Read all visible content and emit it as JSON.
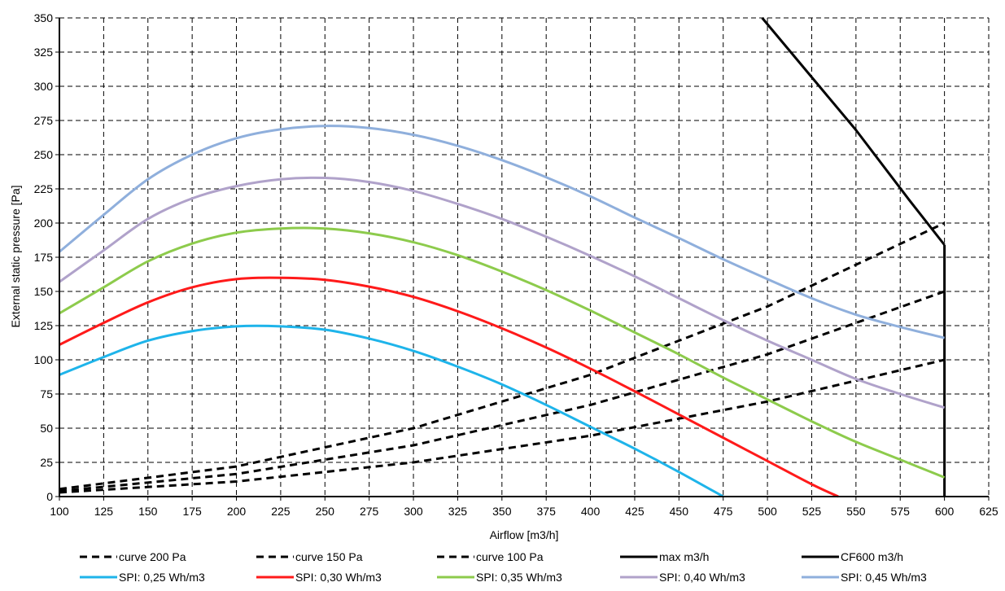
{
  "chart_data": {
    "type": "line",
    "title": "",
    "xlabel": "Airflow [m3/h]",
    "ylabel": "External static pressure [Pa]",
    "xlim": [
      100,
      625
    ],
    "ylim": [
      0,
      350
    ],
    "xticks": [
      100,
      125,
      150,
      175,
      200,
      225,
      250,
      275,
      300,
      325,
      350,
      375,
      400,
      425,
      450,
      475,
      500,
      525,
      550,
      575,
      600,
      625
    ],
    "yticks": [
      0,
      25,
      50,
      75,
      100,
      125,
      150,
      175,
      200,
      225,
      250,
      275,
      300,
      325,
      350
    ],
    "grid": "dashed",
    "legend_position": "bottom",
    "series": [
      {
        "name": "curve 200 Pa",
        "color": "#000000",
        "style": "dashed",
        "x": [
          100,
          200,
          300,
          400,
          500,
          600
        ],
        "y": [
          5.5,
          22,
          50,
          89,
          139,
          200
        ]
      },
      {
        "name": "curve 150 Pa",
        "color": "#000000",
        "style": "dashed",
        "x": [
          100,
          200,
          300,
          400,
          500,
          600
        ],
        "y": [
          4,
          16.5,
          37.5,
          67,
          104,
          150
        ]
      },
      {
        "name": "curve 100 Pa",
        "color": "#000000",
        "style": "dashed",
        "x": [
          100,
          200,
          300,
          400,
          500,
          600
        ],
        "y": [
          3,
          11,
          25,
          44.5,
          69.5,
          100
        ]
      },
      {
        "name": "max m3/h",
        "color": "#000000",
        "style": "solid",
        "x": [
          600,
          600
        ],
        "y": [
          0,
          184
        ]
      },
      {
        "name": "CF600 m3/h",
        "color": "#000000",
        "style": "solid",
        "x": [
          497,
          550,
          580,
          600
        ],
        "y": [
          350,
          268,
          217,
          184
        ]
      },
      {
        "name": "SPI: 0,25 Wh/m3",
        "color": "#1EB4EA",
        "style": "solid",
        "x": [
          100,
          125,
          150,
          175,
          200,
          225,
          250,
          275,
          300,
          325,
          350,
          375,
          400,
          425,
          450,
          475
        ],
        "y": [
          89,
          102,
          114,
          121,
          124.5,
          124.5,
          122,
          115.5,
          106.5,
          95,
          82,
          67,
          51,
          35,
          18,
          0
        ]
      },
      {
        "name": "SPI: 0,30 Wh/m3",
        "color": "#FF1A1A",
        "style": "solid",
        "x": [
          100,
          125,
          150,
          175,
          200,
          225,
          250,
          275,
          300,
          325,
          350,
          375,
          400,
          425,
          450,
          475,
          500,
          525,
          540
        ],
        "y": [
          111,
          127,
          142,
          153,
          159,
          160,
          158.5,
          153.5,
          146,
          135.5,
          123,
          109,
          93.5,
          77,
          60,
          43,
          26,
          9,
          0
        ]
      },
      {
        "name": "SPI: 0,35 Wh/m3",
        "color": "#8DCB4C",
        "style": "solid",
        "x": [
          100,
          125,
          150,
          175,
          200,
          225,
          250,
          275,
          300,
          325,
          350,
          375,
          400,
          425,
          450,
          475,
          500,
          525,
          550,
          575,
          600
        ],
        "y": [
          134,
          153,
          172,
          185,
          193,
          196,
          196,
          192.5,
          186,
          176.5,
          164.5,
          151,
          136,
          120,
          104,
          87,
          71,
          55,
          40,
          27,
          14
        ]
      },
      {
        "name": "SPI: 0,40 Wh/m3",
        "color": "#B0A2CA",
        "style": "solid",
        "x": [
          100,
          125,
          150,
          175,
          200,
          225,
          250,
          275,
          300,
          325,
          350,
          375,
          400,
          425,
          450,
          475,
          500,
          525,
          550,
          575,
          600
        ],
        "y": [
          157,
          180,
          203,
          218,
          227,
          232,
          233,
          230,
          223.5,
          214,
          203,
          190,
          176,
          161,
          145,
          129,
          114,
          100,
          86,
          75,
          65
        ]
      },
      {
        "name": "SPI: 0,45 Wh/m3",
        "color": "#8FAFDC",
        "style": "solid",
        "x": [
          100,
          125,
          150,
          175,
          200,
          225,
          250,
          275,
          300,
          325,
          350,
          375,
          400,
          425,
          450,
          475,
          500,
          525,
          550,
          575,
          600
        ],
        "y": [
          179,
          206,
          232,
          250,
          262,
          268.5,
          271,
          269.5,
          264.5,
          256.5,
          246,
          233.5,
          219.5,
          204,
          189,
          173.5,
          159,
          145,
          133,
          124,
          116
        ]
      }
    ]
  }
}
